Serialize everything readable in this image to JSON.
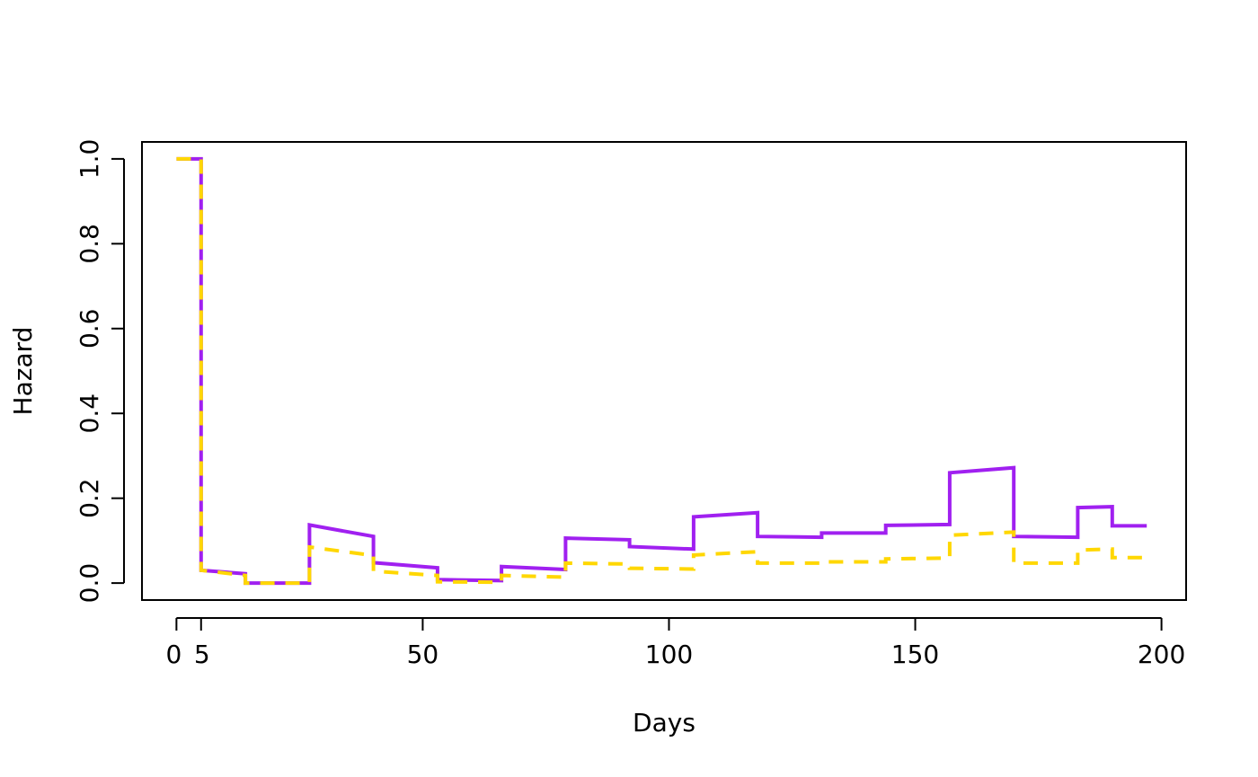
{
  "chart_data": {
    "type": "line",
    "xlabel": "Days",
    "ylabel": "Hazard",
    "xlim": [
      -7,
      205
    ],
    "ylim": [
      -0.04,
      1.04
    ],
    "x_ticks": [
      0,
      5,
      50,
      100,
      150,
      200
    ],
    "x_tick_labels": [
      "0",
      "5",
      "50",
      "100",
      "150",
      "200"
    ],
    "y_ticks": [
      0.0,
      0.2,
      0.4,
      0.6,
      0.8,
      1.0
    ],
    "y_tick_labels": [
      "0.0",
      "0.2",
      "0.4",
      "0.6",
      "0.8",
      "1.0"
    ],
    "grid": false,
    "series": [
      {
        "color": "#a020f0",
        "line_style": "solid",
        "points": [
          [
            0,
            1.0
          ],
          [
            5,
            1.0
          ],
          [
            5,
            0.03
          ],
          [
            14,
            0.022
          ],
          [
            14,
            0.0
          ],
          [
            27,
            0.0
          ],
          [
            27,
            0.137
          ],
          [
            40,
            0.11
          ],
          [
            40,
            0.048
          ],
          [
            53,
            0.036
          ],
          [
            53,
            0.008
          ],
          [
            66,
            0.006
          ],
          [
            66,
            0.039
          ],
          [
            79,
            0.032
          ],
          [
            79,
            0.106
          ],
          [
            92,
            0.102
          ],
          [
            92,
            0.086
          ],
          [
            105,
            0.08
          ],
          [
            105,
            0.156
          ],
          [
            118,
            0.166
          ],
          [
            118,
            0.11
          ],
          [
            131,
            0.108
          ],
          [
            131,
            0.118
          ],
          [
            144,
            0.118
          ],
          [
            144,
            0.136
          ],
          [
            157,
            0.138
          ],
          [
            157,
            0.26
          ],
          [
            170,
            0.272
          ],
          [
            170,
            0.11
          ],
          [
            183,
            0.108
          ],
          [
            183,
            0.178
          ],
          [
            190,
            0.18
          ],
          [
            190,
            0.135
          ],
          [
            197,
            0.135
          ]
        ]
      },
      {
        "color": "#ffd700",
        "line_style": "dashed",
        "points": [
          [
            0,
            1.0
          ],
          [
            5,
            1.0
          ],
          [
            5,
            0.03
          ],
          [
            14,
            0.018
          ],
          [
            14,
            0.0
          ],
          [
            27,
            0.0
          ],
          [
            27,
            0.085
          ],
          [
            40,
            0.065
          ],
          [
            40,
            0.028
          ],
          [
            53,
            0.018
          ],
          [
            53,
            0.003
          ],
          [
            66,
            0.002
          ],
          [
            66,
            0.018
          ],
          [
            79,
            0.014
          ],
          [
            79,
            0.047
          ],
          [
            92,
            0.045
          ],
          [
            92,
            0.035
          ],
          [
            105,
            0.033
          ],
          [
            105,
            0.066
          ],
          [
            118,
            0.074
          ],
          [
            118,
            0.047
          ],
          [
            131,
            0.047
          ],
          [
            131,
            0.05
          ],
          [
            144,
            0.05
          ],
          [
            144,
            0.057
          ],
          [
            157,
            0.059
          ],
          [
            157,
            0.113
          ],
          [
            170,
            0.12
          ],
          [
            170,
            0.047
          ],
          [
            183,
            0.047
          ],
          [
            183,
            0.078
          ],
          [
            190,
            0.08
          ],
          [
            190,
            0.06
          ],
          [
            197,
            0.06
          ]
        ]
      }
    ]
  }
}
